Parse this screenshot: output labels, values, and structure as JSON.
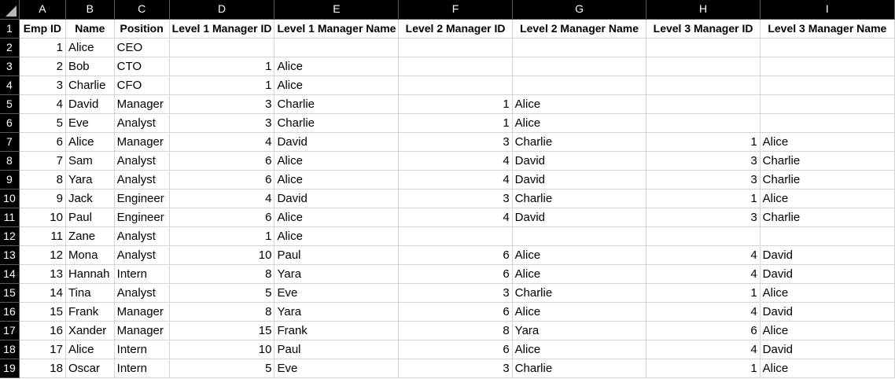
{
  "columns": [
    "A",
    "B",
    "C",
    "D",
    "E",
    "F",
    "G",
    "H",
    "I"
  ],
  "row_numbers": [
    "1",
    "2",
    "3",
    "4",
    "5",
    "6",
    "7",
    "8",
    "9",
    "10",
    "11",
    "12",
    "13",
    "14",
    "15",
    "16",
    "17",
    "18",
    "19"
  ],
  "headers": {
    "a": "Emp ID",
    "b": "Name",
    "c": "Position",
    "d": "Level 1 Manager ID",
    "e": "Level 1 Manager Name",
    "f": "Level 2 Manager ID",
    "g": "Level 2 Manager Name",
    "h": "Level 3 Manager ID",
    "i": "Level 3 Manager Name"
  },
  "rows": [
    {
      "a": "1",
      "b": "Alice",
      "c": "CEO",
      "d": "",
      "e": "",
      "f": "",
      "g": "",
      "h": "",
      "i": ""
    },
    {
      "a": "2",
      "b": "Bob",
      "c": "CTO",
      "d": "1",
      "e": "Alice",
      "f": "",
      "g": "",
      "h": "",
      "i": ""
    },
    {
      "a": "3",
      "b": "Charlie",
      "c": "CFO",
      "d": "1",
      "e": "Alice",
      "f": "",
      "g": "",
      "h": "",
      "i": ""
    },
    {
      "a": "4",
      "b": "David",
      "c": "Manager",
      "d": "3",
      "e": "Charlie",
      "f": "1",
      "g": "Alice",
      "h": "",
      "i": ""
    },
    {
      "a": "5",
      "b": "Eve",
      "c": "Analyst",
      "d": "3",
      "e": "Charlie",
      "f": "1",
      "g": "Alice",
      "h": "",
      "i": ""
    },
    {
      "a": "6",
      "b": "Alice",
      "c": "Manager",
      "d": "4",
      "e": "David",
      "f": "3",
      "g": "Charlie",
      "h": "1",
      "i": "Alice"
    },
    {
      "a": "7",
      "b": "Sam",
      "c": "Analyst",
      "d": "6",
      "e": "Alice",
      "f": "4",
      "g": "David",
      "h": "3",
      "i": "Charlie"
    },
    {
      "a": "8",
      "b": "Yara",
      "c": "Analyst",
      "d": "6",
      "e": "Alice",
      "f": "4",
      "g": "David",
      "h": "3",
      "i": "Charlie"
    },
    {
      "a": "9",
      "b": "Jack",
      "c": "Engineer",
      "d": "4",
      "e": "David",
      "f": "3",
      "g": "Charlie",
      "h": "1",
      "i": "Alice"
    },
    {
      "a": "10",
      "b": "Paul",
      "c": "Engineer",
      "d": "6",
      "e": "Alice",
      "f": "4",
      "g": "David",
      "h": "3",
      "i": "Charlie"
    },
    {
      "a": "11",
      "b": "Zane",
      "c": "Analyst",
      "d": "1",
      "e": "Alice",
      "f": "",
      "g": "",
      "h": "",
      "i": ""
    },
    {
      "a": "12",
      "b": "Mona",
      "c": "Analyst",
      "d": "10",
      "e": "Paul",
      "f": "6",
      "g": "Alice",
      "h": "4",
      "i": "David"
    },
    {
      "a": "13",
      "b": "Hannah",
      "c": "Intern",
      "d": "8",
      "e": "Yara",
      "f": "6",
      "g": "Alice",
      "h": "4",
      "i": "David"
    },
    {
      "a": "14",
      "b": "Tina",
      "c": "Analyst",
      "d": "5",
      "e": "Eve",
      "f": "3",
      "g": "Charlie",
      "h": "1",
      "i": "Alice"
    },
    {
      "a": "15",
      "b": "Frank",
      "c": "Manager",
      "d": "8",
      "e": "Yara",
      "f": "6",
      "g": "Alice",
      "h": "4",
      "i": "David"
    },
    {
      "a": "16",
      "b": "Xander",
      "c": "Manager",
      "d": "15",
      "e": "Frank",
      "f": "8",
      "g": "Yara",
      "h": "6",
      "i": "Alice"
    },
    {
      "a": "17",
      "b": "Alice",
      "c": "Intern",
      "d": "10",
      "e": "Paul",
      "f": "6",
      "g": "Alice",
      "h": "4",
      "i": "David"
    },
    {
      "a": "18",
      "b": "Oscar",
      "c": "Intern",
      "d": "5",
      "e": "Eve",
      "f": "3",
      "g": "Charlie",
      "h": "1",
      "i": "Alice"
    }
  ],
  "colors": {
    "header_bg": "#000000",
    "header_text": "#ffffff",
    "grid": "#d4d4d4",
    "cell_bg": "#ffffff"
  }
}
